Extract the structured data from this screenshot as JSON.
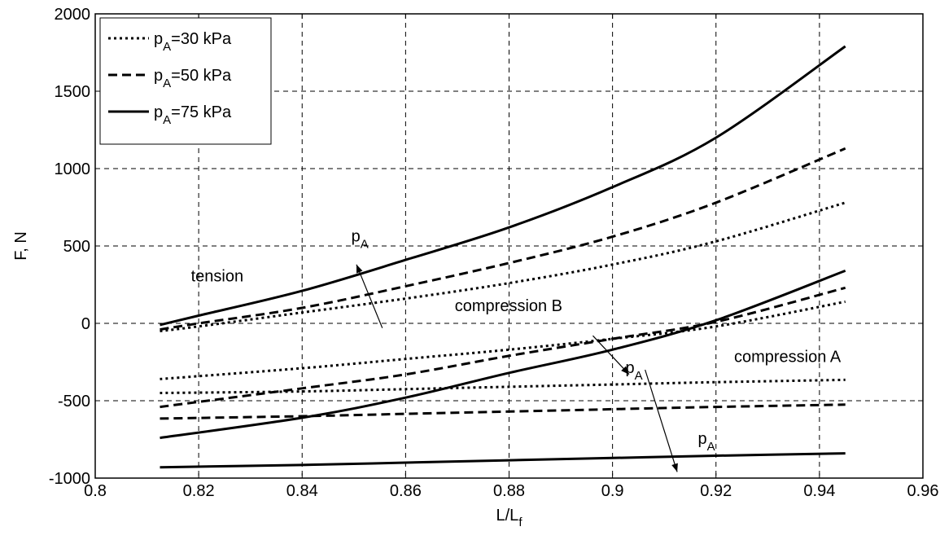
{
  "chart_data": {
    "type": "line",
    "title": "",
    "xlabel": {
      "main": "L/L",
      "sub": "f"
    },
    "ylabel": "F, N",
    "xlim": [
      0.8,
      0.96
    ],
    "ylim": [
      -1000,
      2000
    ],
    "xticks": [
      0.8,
      0.82,
      0.84,
      0.86,
      0.88,
      0.9,
      0.92,
      0.94,
      0.96
    ],
    "xtick_labels": [
      "0.8",
      "0.82",
      "0.84",
      "0.86",
      "0.88",
      "0.9",
      "0.92",
      "0.94",
      "0.96"
    ],
    "yticks": [
      -1000,
      -500,
      0,
      500,
      1000,
      1500,
      2000
    ],
    "ytick_labels": [
      "-1000",
      "-500",
      "0",
      "500",
      "1000",
      "1500",
      "2000"
    ],
    "grid": true,
    "legend_position": "top-left",
    "legend": [
      {
        "pre": "p",
        "sub": "A",
        "post": "=30 kPa",
        "style": "dotted"
      },
      {
        "pre": "p",
        "sub": "A",
        "post": "=50 kPa",
        "style": "dashed"
      },
      {
        "pre": "p",
        "sub": "A",
        "post": "=75 kPa",
        "style": "solid"
      }
    ],
    "series": [
      {
        "group": "tension",
        "style": "dotted",
        "x": [
          0.8125,
          0.82,
          0.84,
          0.86,
          0.88,
          0.9,
          0.92,
          0.945
        ],
        "y": [
          -50,
          -20,
          70,
          160,
          260,
          380,
          530,
          780
        ]
      },
      {
        "group": "tension",
        "style": "dashed",
        "x": [
          0.8125,
          0.82,
          0.84,
          0.86,
          0.88,
          0.9,
          0.92,
          0.945
        ],
        "y": [
          -40,
          0,
          100,
          240,
          390,
          560,
          780,
          1130
        ]
      },
      {
        "group": "tension",
        "style": "solid",
        "x": [
          0.8125,
          0.82,
          0.84,
          0.86,
          0.88,
          0.9,
          0.92,
          0.945
        ],
        "y": [
          -10,
          50,
          210,
          410,
          620,
          880,
          1200,
          1790
        ]
      },
      {
        "group": "compression B",
        "style": "dotted",
        "x": [
          0.8125,
          0.84,
          0.86,
          0.88,
          0.9,
          0.92,
          0.945
        ],
        "y": [
          -360,
          -290,
          -230,
          -170,
          -100,
          -20,
          140
        ]
      },
      {
        "group": "compression B",
        "style": "dashed",
        "x": [
          0.8125,
          0.84,
          0.86,
          0.88,
          0.9,
          0.92,
          0.945
        ],
        "y": [
          -540,
          -420,
          -330,
          -210,
          -100,
          10,
          230
        ]
      },
      {
        "group": "compression B",
        "style": "solid",
        "x": [
          0.8125,
          0.84,
          0.86,
          0.88,
          0.9,
          0.92,
          0.945
        ],
        "y": [
          -740,
          -610,
          -480,
          -320,
          -170,
          20,
          340
        ]
      },
      {
        "group": "compression A",
        "style": "dotted",
        "x": [
          0.8125,
          0.84,
          0.86,
          0.88,
          0.9,
          0.92,
          0.945
        ],
        "y": [
          -450,
          -440,
          -425,
          -410,
          -395,
          -380,
          -365
        ]
      },
      {
        "group": "compression A",
        "style": "dashed",
        "x": [
          0.8125,
          0.84,
          0.86,
          0.88,
          0.9,
          0.92,
          0.945
        ],
        "y": [
          -615,
          -600,
          -585,
          -570,
          -555,
          -540,
          -525
        ]
      },
      {
        "group": "compression A",
        "style": "solid",
        "x": [
          0.8125,
          0.84,
          0.86,
          0.88,
          0.9,
          0.92,
          0.945
        ],
        "y": [
          -930,
          -915,
          -900,
          -885,
          -870,
          -855,
          -840
        ]
      }
    ],
    "annotations": [
      {
        "id": "tension",
        "text": "tension",
        "x": 0.8185,
        "y": 270
      },
      {
        "id": "compression-b",
        "text": "compression B",
        "x": 0.8695,
        "y": 80
      },
      {
        "id": "compression-a",
        "text": "compression A",
        "x": 0.9235,
        "y": -250
      }
    ],
    "pa_labels": [
      {
        "id": "pa-tension",
        "pre": "p",
        "sub": "A",
        "x": 0.8495,
        "y": 530
      },
      {
        "id": "pa-compression-b",
        "pre": "p",
        "sub": "A",
        "x": 0.9025,
        "y": -320
      },
      {
        "id": "pa-compression-a",
        "pre": "p",
        "sub": "A",
        "x": 0.9165,
        "y": -780
      }
    ],
    "arrows": [
      {
        "id": "tension-arrow",
        "from": [
          0.8555,
          -30
        ],
        "to": [
          0.8505,
          380
        ]
      },
      {
        "id": "compression-b-arrow",
        "from": [
          0.8962,
          -80
        ],
        "to": [
          0.9032,
          -330
        ]
      },
      {
        "id": "compression-a-arrow",
        "from": [
          0.9063,
          -300
        ],
        "to": [
          0.9125,
          -960
        ]
      }
    ]
  }
}
